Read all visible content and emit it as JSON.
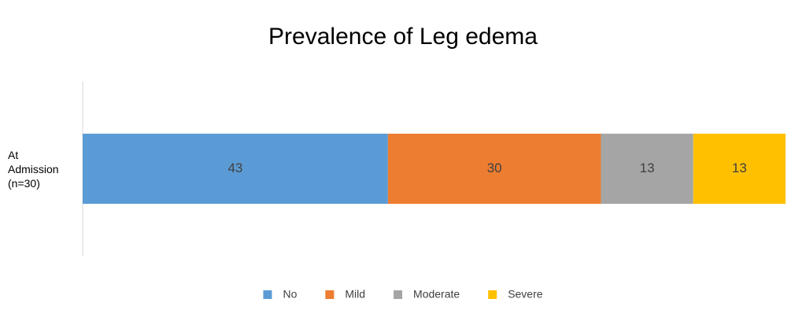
{
  "chart_data": {
    "type": "bar",
    "orientation": "horizontal",
    "stacked": true,
    "title": "Prevalence of Leg edema",
    "categories": [
      "At Admission (n=30)"
    ],
    "series": [
      {
        "name": "No",
        "color": "#5b9bd5",
        "values": [
          43
        ]
      },
      {
        "name": "Mild",
        "color": "#ed7d31",
        "values": [
          30
        ]
      },
      {
        "name": "Moderate",
        "color": "#a5a5a5",
        "values": [
          13
        ]
      },
      {
        "name": "Severe",
        "color": "#ffc000",
        "values": [
          13
        ]
      }
    ],
    "data_labels": true,
    "legend": "bottom"
  }
}
